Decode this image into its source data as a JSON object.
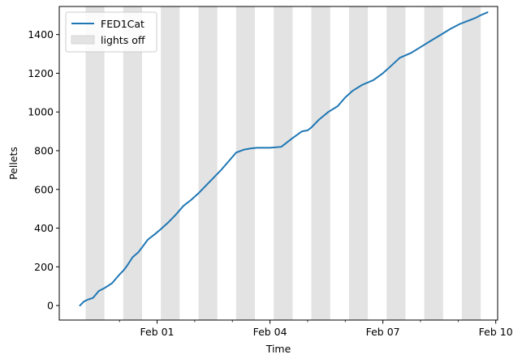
{
  "chart_data": {
    "type": "line",
    "xlabel": "Time",
    "ylabel": "Pellets",
    "x_tick_labels": [
      "Feb 01",
      "Feb 04",
      "Feb 07",
      "Feb 10"
    ],
    "x_tick_days": [
      31,
      34,
      37,
      40
    ],
    "x_minor_tick_days": [
      30,
      32,
      33,
      35,
      36,
      38,
      39
    ],
    "xlim_days": [
      28.4,
      40.05
    ],
    "y_ticks": [
      0,
      200,
      400,
      600,
      800,
      1000,
      1200,
      1400
    ],
    "ylim": [
      -75,
      1545
    ],
    "legend_position": "upper-left",
    "legend": [
      {
        "label": "FED1Cat",
        "kind": "line",
        "color": "#1f77b4"
      },
      {
        "label": "lights off",
        "kind": "patch",
        "color": "#e3e3e3"
      }
    ],
    "shaded_intervals_days": [
      [
        29.1,
        29.6
      ],
      [
        30.1,
        30.6
      ],
      [
        31.1,
        31.6
      ],
      [
        32.1,
        32.6
      ],
      [
        33.1,
        33.6
      ],
      [
        34.1,
        34.6
      ],
      [
        35.1,
        35.6
      ],
      [
        36.1,
        36.6
      ],
      [
        37.1,
        37.6
      ],
      [
        38.1,
        38.6
      ],
      [
        39.1,
        39.6
      ]
    ],
    "series": [
      {
        "name": "FED1Cat",
        "color": "#1f77b4",
        "x_days": [
          28.95,
          29.05,
          29.15,
          29.3,
          29.45,
          29.6,
          29.8,
          30.0,
          30.1,
          30.2,
          30.35,
          30.5,
          30.6,
          30.75,
          30.95,
          31.1,
          31.3,
          31.5,
          31.7,
          31.9,
          32.1,
          32.3,
          32.5,
          32.7,
          32.9,
          33.1,
          33.3,
          33.5,
          33.65,
          33.8,
          34.0,
          34.3,
          34.6,
          34.85,
          35.0,
          35.1,
          35.3,
          35.55,
          35.8,
          36.0,
          36.2,
          36.45,
          36.75,
          37.0,
          37.2,
          37.45,
          37.75,
          38.0,
          38.25,
          38.55,
          38.8,
          39.05,
          39.25,
          39.45,
          39.6,
          39.78
        ],
        "values": [
          0,
          20,
          30,
          40,
          75,
          90,
          115,
          160,
          180,
          205,
          250,
          275,
          300,
          340,
          370,
          395,
          430,
          470,
          515,
          545,
          580,
          620,
          660,
          700,
          745,
          790,
          805,
          812,
          815,
          815,
          815,
          820,
          865,
          900,
          905,
          920,
          960,
          1000,
          1030,
          1075,
          1110,
          1140,
          1165,
          1200,
          1235,
          1280,
          1305,
          1335,
          1365,
          1400,
          1430,
          1455,
          1470,
          1485,
          1500,
          1515
        ]
      }
    ]
  }
}
